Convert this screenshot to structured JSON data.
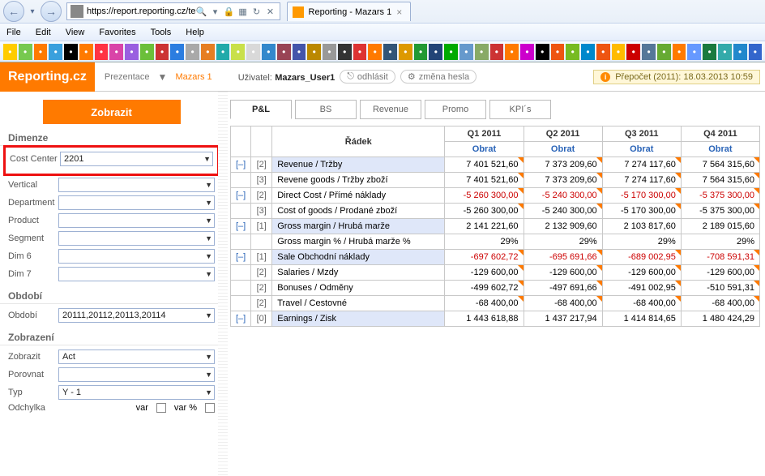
{
  "browser": {
    "url": "https://report.reporting.cz/te",
    "tab_title": "Reporting - Mazars 1",
    "menu": [
      "File",
      "Edit",
      "View",
      "Favorites",
      "Tools",
      "Help"
    ],
    "bookmark_colors": [
      "#ffcc00",
      "#77c94f",
      "#ff7a00",
      "#3aa0dd",
      "#000",
      "#ff7a00",
      "#ff3344",
      "#d944a8",
      "#9a5fe0",
      "#6bbf3a",
      "#c33",
      "#2b7de0",
      "#a9a9a9",
      "#e67e22",
      "#2aa",
      "#c9e04a",
      "#d9d9d9",
      "#38c",
      "#945",
      "#45a",
      "#b80",
      "#999",
      "#333",
      "#d33",
      "#ff7a00",
      "#357",
      "#d90",
      "#293",
      "#247",
      "#0a0",
      "#69c",
      "#8a6",
      "#c33",
      "#ff7a00",
      "#c0c",
      "#000",
      "#e51",
      "#7b2",
      "#08c",
      "#e51",
      "#fb0",
      "#c00",
      "#579",
      "#6a3",
      "#ff7a00",
      "#69f",
      "#1a7a3e",
      "#3aa",
      "#28c",
      "#36c"
    ]
  },
  "header": {
    "logo": "Reporting.cz",
    "breadcrumb_parent": "Prezentace",
    "breadcrumb_current": "Mazars 1",
    "user_label": "Uživatel:",
    "user_name": "Mazars_User1",
    "logout": "odhlásit",
    "pwd": "změna hesla",
    "status": "Přepočet (2011): 18.03.2013 10:59"
  },
  "side": {
    "show": "Zobrazit",
    "dimenze_title": "Dimenze",
    "obdobi_title": "Období",
    "zobraz_title": "Zobrazení",
    "filters": {
      "cost_center_label": "Cost Center",
      "cost_center_val": "2201",
      "vertical": "Vertical",
      "department": "Department",
      "product": "Product",
      "segment": "Segment",
      "dim6": "Dim 6",
      "dim7": "Dim 7"
    },
    "obdobi_label": "Období",
    "obdobi_val": "20111,20112,20113,20114",
    "view": {
      "zobrazit": "Zobrazit",
      "zobrazit_val": "Act",
      "porovnat": "Porovnat",
      "porovnat_val": "",
      "typ": "Typ",
      "typ_val": "Y - 1",
      "odchylka": "Odchylka",
      "var": "var",
      "varpct": "var %"
    }
  },
  "tabs": [
    "P&L",
    "BS",
    "Revenue",
    "Promo",
    "KPI´s"
  ],
  "table": {
    "col_head_row": "Řádek",
    "col_head_obrat": "Obrat",
    "quarters": [
      "Q1 2011",
      "Q2 2011",
      "Q3 2011",
      "Q4 2011"
    ],
    "rows": [
      {
        "e": "[–]",
        "d": "[2]",
        "l": "Revenue / Tržby",
        "v": [
          "7 401 521,60",
          "7 373 209,60",
          "7 274 117,60",
          "7 564 315,60"
        ],
        "hl": true
      },
      {
        "e": "",
        "d": "[3]",
        "l": "Revene goods / Tržby zboží",
        "v": [
          "7 401 521,60",
          "7 373 209,60",
          "7 274 117,60",
          "7 564 315,60"
        ],
        "hl": true,
        "lwhite": true
      },
      {
        "e": "[–]",
        "d": "[2]",
        "l": "Direct Cost / Přímé náklady",
        "v": [
          "-5 260 300,00",
          "-5 240 300,00",
          "-5 170 300,00",
          "-5 375 300,00"
        ],
        "red": true,
        "hl": true,
        "lwhite": true
      },
      {
        "e": "",
        "d": "[3]",
        "l": "Cost of goods / Prodané zboží",
        "v": [
          "-5 260 300,00",
          "-5 240 300,00",
          "-5 170 300,00",
          "-5 375 300,00"
        ],
        "hl": true,
        "lwhite": true
      },
      {
        "e": "[–]",
        "d": "[1]",
        "l": "Gross margin / Hrubá marže",
        "v": [
          "2 141 221,60",
          "2 132 909,60",
          "2 103 817,60",
          "2 189 015,60"
        ]
      },
      {
        "e": "",
        "d": "",
        "l": "Gross margin % / Hrubá marže %",
        "v": [
          "29%",
          "29%",
          "29%",
          "29%"
        ],
        "lwhite": true
      },
      {
        "e": "[–]",
        "d": "[1]",
        "l": "Sale Obchodní náklady",
        "v": [
          "-697 602,72",
          "-695 691,66",
          "-689 002,95",
          "-708 591,31"
        ],
        "red": true,
        "hl": true
      },
      {
        "e": "",
        "d": "[2]",
        "l": "Salaries / Mzdy",
        "v": [
          "-129 600,00",
          "-129 600,00",
          "-129 600,00",
          "-129 600,00"
        ],
        "hl": true,
        "lwhite": true
      },
      {
        "e": "",
        "d": "[2]",
        "l": "Bonuses / Odměny",
        "v": [
          "-499 602,72",
          "-497 691,66",
          "-491 002,95",
          "-510 591,31"
        ],
        "hl": true,
        "lwhite": true
      },
      {
        "e": "",
        "d": "[2]",
        "l": "Travel / Cestovné",
        "v": [
          "-68 400,00",
          "-68 400,00",
          "-68 400,00",
          "-68 400,00"
        ],
        "hl": true,
        "lwhite": true
      },
      {
        "e": "[–]",
        "d": "[0]",
        "l": "Earnings / Zisk",
        "v": [
          "1 443 618,88",
          "1 437 217,94",
          "1 414 814,65",
          "1 480 424,29"
        ]
      }
    ]
  }
}
